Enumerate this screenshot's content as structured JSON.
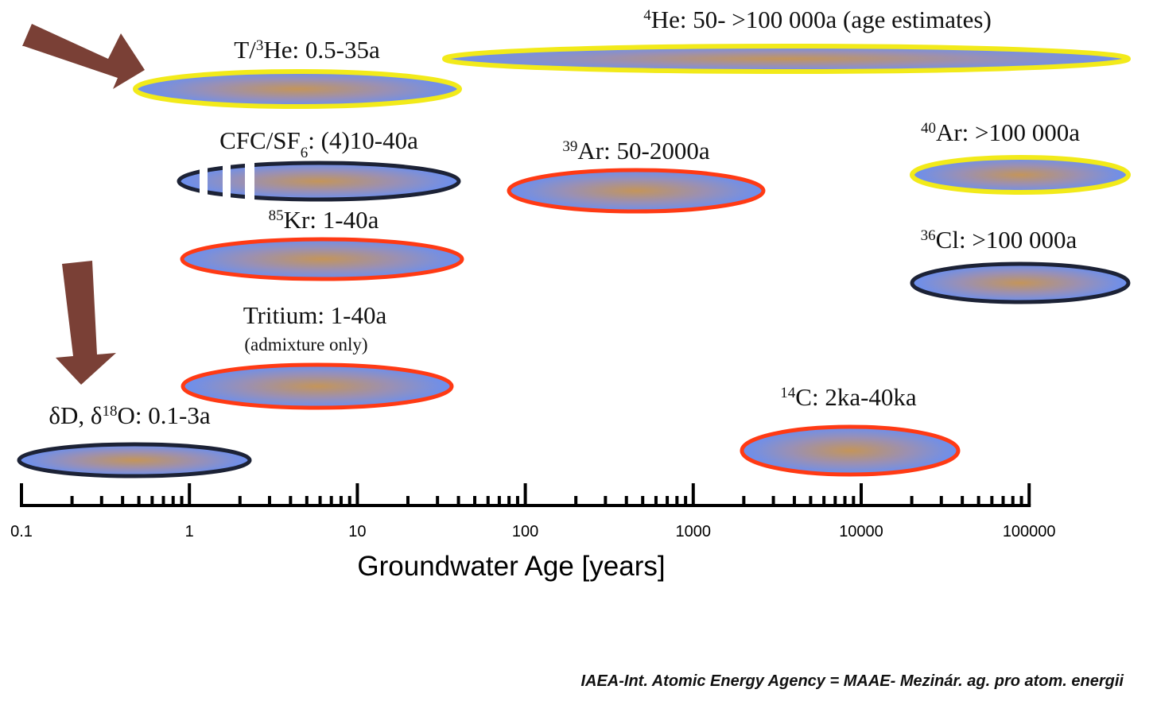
{
  "axis": {
    "title": "Groundwater Age [years]",
    "ticks": [
      "0.1",
      "1",
      "10",
      "100",
      "1000",
      "10000",
      "100000"
    ],
    "range_years": [
      0.1,
      100000
    ],
    "scale": "log"
  },
  "tracers": [
    {
      "id": "he4",
      "pre": "",
      "sup": "4",
      "main": "He: 50- >100 000a (age estimates)",
      "sub": "",
      "post": "",
      "note": "",
      "min": 50,
      "max": 100000,
      "border": "#f2ea1a"
    },
    {
      "id": "th3",
      "pre": "T/",
      "sup": "3",
      "main": "He: 0.5-35a",
      "sub": "",
      "post": "",
      "note": "",
      "min": 0.5,
      "max": 35,
      "border": "#f2ea1a"
    },
    {
      "id": "cfc",
      "pre": "CFC/SF",
      "sup": "",
      "main": "",
      "sub": "6",
      "post": ": (4)10-40a",
      "note": "",
      "min": 4,
      "max": 40,
      "border": "#1c2236"
    },
    {
      "id": "ar39",
      "pre": "",
      "sup": "39",
      "main": "Ar: 50-2000a",
      "sub": "",
      "post": "",
      "note": "",
      "min": 50,
      "max": 2000,
      "border": "#ff3a14"
    },
    {
      "id": "ar40",
      "pre": "",
      "sup": "40",
      "main": "Ar: >100 000a",
      "sub": "",
      "post": "",
      "note": "",
      "min": 100000,
      "max": 100000,
      "border": "#f2ea1a"
    },
    {
      "id": "kr85",
      "pre": "",
      "sup": "85",
      "main": "Kr: 1-40a",
      "sub": "",
      "post": "",
      "note": "",
      "min": 1,
      "max": 40,
      "border": "#ff3a14"
    },
    {
      "id": "cl36",
      "pre": "",
      "sup": "36",
      "main": "Cl: >100 000a",
      "sub": "",
      "post": "",
      "note": "",
      "min": 100000,
      "max": 100000,
      "border": "#1c2236"
    },
    {
      "id": "trit",
      "pre": "Tritium: 1-40a",
      "sup": "",
      "main": "",
      "sub": "",
      "post": "",
      "note": "(admixture only)",
      "min": 1,
      "max": 40,
      "border": "#ff3a14"
    },
    {
      "id": "c14",
      "pre": "",
      "sup": "14",
      "main": "C: 2ka-40ka",
      "sub": "",
      "post": "",
      "note": "",
      "min": 2000,
      "max": 40000,
      "border": "#ff3a14"
    },
    {
      "id": "d18o",
      "pre": "δD, δ",
      "sup": "18",
      "main": "O: 0.1-3a",
      "sub": "",
      "post": "",
      "note": "",
      "min": 0.1,
      "max": 3,
      "border": "#1c2236"
    }
  ],
  "colors": {
    "fill_edge": "#6a8ff0",
    "fill_center": "#c4955a",
    "arrow": "#7a4036",
    "axis": "#000000"
  },
  "credit": "IAEA-Int. Atomic Energy Agency = MAAE- Mezinár. ag. pro atom. energii"
}
